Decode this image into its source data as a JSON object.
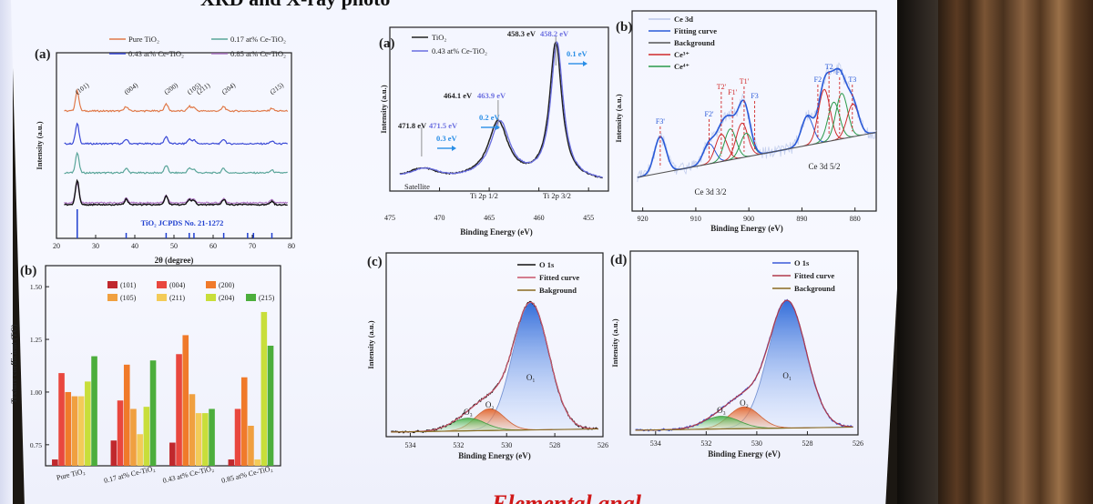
{
  "slide": {
    "title": "XRD and X-ray photo",
    "bottom_text": "Elemental anal"
  },
  "chart_data": [
    {
      "panel": "(a)",
      "type": "line",
      "xlabel": "2θ (degree)",
      "ylabel": "Intensity (a.u.)",
      "xlim": [
        20,
        80
      ],
      "xticks": [
        20,
        30,
        40,
        50,
        60,
        70,
        80
      ],
      "series": [
        {
          "name": "Pure TiO₂",
          "color": "#e07a4a"
        },
        {
          "name": "0.43 at% Ce-TiO₂",
          "color": "#3b4ad6"
        },
        {
          "name": "0.17 at% Ce-TiO₂",
          "color": "#5aa59a"
        },
        {
          "name": "0.85 at% Ce-TiO₂",
          "color": "#b07ac6"
        }
      ],
      "peaks": [
        {
          "label": "(101)",
          "x": 25.3
        },
        {
          "label": "(004)",
          "x": 37.8
        },
        {
          "label": "(200)",
          "x": 48.0
        },
        {
          "label": "(105)",
          "x": 53.9
        },
        {
          "label": "(211)",
          "x": 55.1
        },
        {
          "label": "(204)",
          "x": 62.7
        },
        {
          "label": "(215)",
          "x": 75.0
        }
      ],
      "reference_label": "TiO₂ JCPDS No. 21-1272",
      "reference_lines": [
        25.3,
        37.8,
        48.0,
        53.9,
        55.1,
        62.7,
        68.8,
        70.3,
        75.0
      ]
    },
    {
      "panel": "(b)",
      "type": "bar",
      "ylabel": "Texture coefficient (TC)",
      "ylim": [
        0.65,
        1.6
      ],
      "yticks": [
        0.75,
        1.0,
        1.25,
        1.5
      ],
      "categories": [
        "Pure TiO₂",
        "0.17 at% Ce-TiO₂",
        "0.43 at% Ce-TiO₂",
        "0.85 at% Ce-TiO₂"
      ],
      "series": [
        {
          "name": "(101)",
          "color": "#c0282d",
          "values": [
            0.68,
            0.77,
            0.76,
            0.68
          ]
        },
        {
          "name": "(004)",
          "color": "#e9473e",
          "values": [
            1.09,
            0.96,
            1.18,
            0.92
          ]
        },
        {
          "name": "(200)",
          "color": "#f07a2a",
          "values": [
            1.0,
            1.13,
            1.27,
            1.07
          ]
        },
        {
          "name": "(105)",
          "color": "#f0a040",
          "values": [
            0.98,
            0.92,
            0.99,
            0.84
          ]
        },
        {
          "name": "(211)",
          "color": "#f3cb58",
          "values": [
            0.98,
            0.8,
            0.9,
            0.68
          ]
        },
        {
          "name": "(204)",
          "color": "#c8de3a",
          "values": [
            1.05,
            0.93,
            0.9,
            1.38
          ]
        },
        {
          "name": "(215)",
          "color": "#4cae3c",
          "values": [
            1.17,
            1.15,
            0.92,
            1.22
          ]
        }
      ]
    },
    {
      "panel": "(a)",
      "type": "line",
      "xlabel": "Binding Energy (eV)",
      "ylabel": "Intensity (a.u.)",
      "xlim": [
        475,
        453
      ],
      "xticks": [
        475,
        470,
        465,
        460,
        455
      ],
      "series": [
        {
          "name": "TiO₂",
          "color": "#222222"
        },
        {
          "name": "0.43 at% Ce-TiO₂",
          "color": "#6a6ee0"
        }
      ],
      "annotations": [
        {
          "text": "458.3 eV",
          "color": "#222222"
        },
        {
          "text": "458.2 eV",
          "color": "#6a6ee0"
        },
        {
          "text": "0.1 eV",
          "color": "#2a8ee6"
        },
        {
          "text": "464.1 eV",
          "color": "#222222"
        },
        {
          "text": "463.9 eV",
          "color": "#6a6ee0"
        },
        {
          "text": "0.2 eV",
          "color": "#2a8ee6"
        },
        {
          "text": "471.8 eV",
          "color": "#222222"
        },
        {
          "text": "471.5 eV",
          "color": "#6a6ee0"
        },
        {
          "text": "0.3 eV",
          "color": "#2a8ee6"
        },
        {
          "text": "Satellite",
          "color": "#222222"
        },
        {
          "text": "Ti 2p 1/2",
          "color": "#222222"
        },
        {
          "text": "Ti 2p 3/2",
          "color": "#222222"
        }
      ]
    },
    {
      "panel": "(b)",
      "type": "line",
      "xlabel": "Binding Energy (eV)",
      "ylabel": "Intensity (a.u.)",
      "xlim": [
        922,
        876
      ],
      "xticks": [
        920,
        910,
        900,
        890,
        880
      ],
      "series": [
        {
          "name": "Ce 3d",
          "color": "#b9c6ea"
        },
        {
          "name": "Fitting curve",
          "color": "#2a5ad8"
        },
        {
          "name": "Background",
          "color": "#555555"
        },
        {
          "name": "Ce³⁺",
          "color": "#d02a2a"
        },
        {
          "name": "Ce⁴⁺",
          "color": "#2a9a4a"
        }
      ],
      "peak_labels": [
        "F3'",
        "F2'",
        "T2'",
        "F1'",
        "T1'",
        "F3",
        "F2",
        "T2",
        "F1",
        "T3"
      ],
      "region_labels": [
        "Ce 3d 3/2",
        "Ce 3d 5/2"
      ]
    },
    {
      "panel": "(c)",
      "type": "line",
      "xlabel": "Binding Energy (eV)",
      "ylabel": "Intensity (a.u.)",
      "xlim": [
        535,
        526
      ],
      "xticks": [
        534,
        532,
        530,
        528,
        526
      ],
      "series": [
        {
          "name": "O 1s",
          "color": "#111111"
        },
        {
          "name": "Fitted curve",
          "color": "#c8556a"
        },
        {
          "name": "Bakground",
          "color": "#8a6a20"
        }
      ],
      "component_labels": [
        "O₁",
        "O₂",
        "O₃"
      ]
    },
    {
      "panel": "(d)",
      "type": "line",
      "xlabel": "Binding Energy (eV)",
      "ylabel": "Intensity (a.u.)",
      "xlim": [
        535,
        526
      ],
      "xticks": [
        534,
        532,
        530,
        528,
        526
      ],
      "series": [
        {
          "name": "O 1s",
          "color": "#3a5ad8"
        },
        {
          "name": "Fitted curve",
          "color": "#b03a4a"
        },
        {
          "name": "Background",
          "color": "#8a6a20"
        }
      ],
      "component_labels": [
        "O₁",
        "O₂",
        "O₃"
      ]
    }
  ]
}
